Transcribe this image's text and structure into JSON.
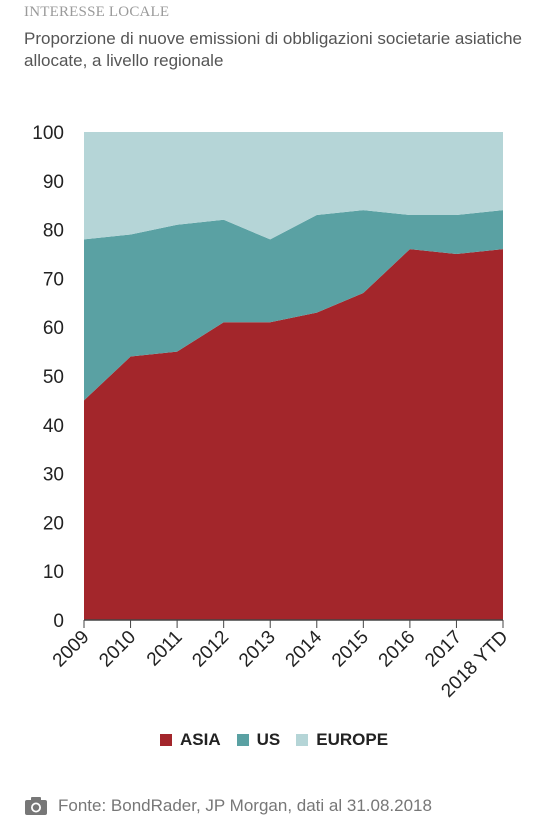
{
  "header": {
    "kicker": "INTERESSE LOCALE",
    "title": "Proporzione di nuove emissioni di obbligazioni societarie asiatiche allocate, a livello regionale"
  },
  "chart_data": {
    "type": "area",
    "stacked": true,
    "categories": [
      "2009",
      "2010",
      "2011",
      "2012",
      "2013",
      "2014",
      "2015",
      "2016",
      "2017",
      "2018 YTD"
    ],
    "series": [
      {
        "name": "ASIA",
        "color": "#a3262b",
        "values": [
          45,
          54,
          55,
          61,
          61,
          63,
          67,
          76,
          75,
          76
        ]
      },
      {
        "name": "US",
        "color": "#5aa1a3",
        "values": [
          33,
          25,
          26,
          21,
          17,
          20,
          17,
          7,
          8,
          8
        ]
      },
      {
        "name": "EUROPE",
        "color": "#b5d5d7",
        "values": [
          22,
          21,
          19,
          18,
          22,
          17,
          16,
          17,
          17,
          16
        ]
      }
    ],
    "ylim": [
      0,
      100
    ],
    "yticks": [
      0,
      10,
      20,
      30,
      40,
      50,
      60,
      70,
      80,
      90,
      100
    ],
    "xlabel": "",
    "ylabel": "",
    "grid": false,
    "legend": "bottom"
  },
  "footer": {
    "source": "Fonte: BondRader, JP Morgan, dati al 31.08.2018",
    "icon": "camera-icon"
  }
}
